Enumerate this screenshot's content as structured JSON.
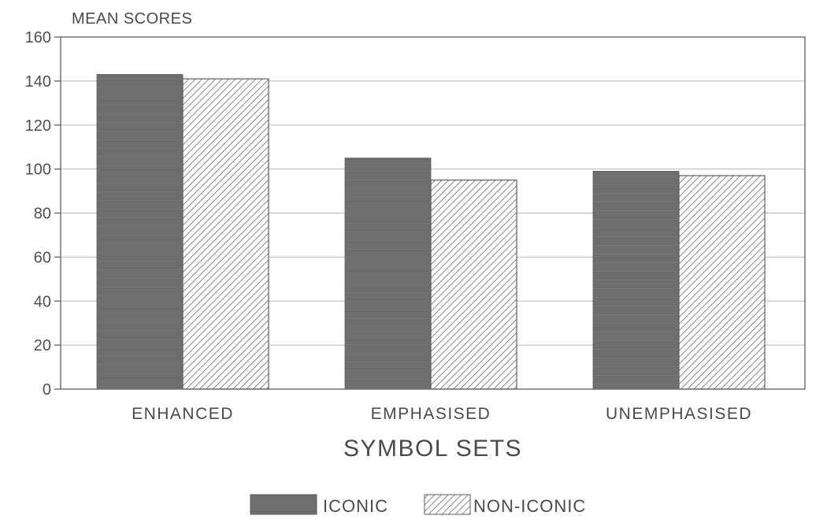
{
  "chart_data": {
    "type": "bar",
    "ylabel": "MEAN SCORES",
    "xlabel": "SYMBOL SETS",
    "categories": [
      "ENHANCED",
      "EMPHASISED",
      "UNEMPHASISED"
    ],
    "series": [
      {
        "name": "ICONIC",
        "values": [
          143,
          105,
          99
        ],
        "color": "#6e6e6e",
        "pattern": "solid"
      },
      {
        "name": "NON-ICONIC",
        "values": [
          141,
          95,
          97
        ],
        "color": "#7a7a7a",
        "pattern": "hatch"
      }
    ],
    "ylim": [
      0,
      160
    ],
    "yticks": [
      0,
      20,
      40,
      60,
      80,
      100,
      120,
      140,
      160
    ],
    "grid": true,
    "legend_position": "bottom-center"
  }
}
